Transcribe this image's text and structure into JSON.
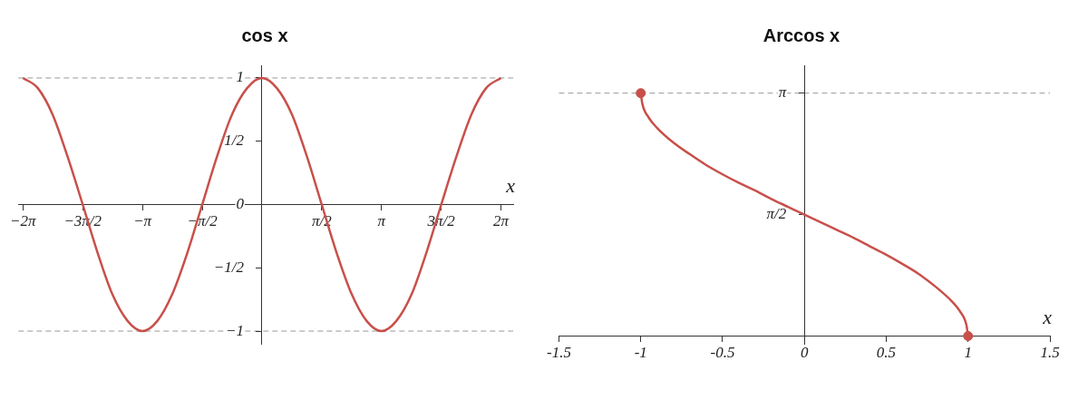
{
  "chart_data": [
    {
      "type": "line",
      "title": "cos x",
      "xlabel": "x",
      "xlim": [
        -6.4,
        6.6
      ],
      "ylim": [
        -1.1,
        1.1
      ],
      "xticks": [
        {
          "value": -6.28,
          "label": "−2π"
        },
        {
          "value": -4.71,
          "label": "−3π/2"
        },
        {
          "value": -3.14,
          "label": "−π"
        },
        {
          "value": -1.57,
          "label": "−π/2"
        },
        {
          "value": 1.57,
          "label": "π/2"
        },
        {
          "value": 3.14,
          "label": "π"
        },
        {
          "value": 4.71,
          "label": "3π/2"
        },
        {
          "value": 6.28,
          "label": "2π"
        }
      ],
      "yticks": [
        {
          "value": -1,
          "label": "−1"
        },
        {
          "value": -0.5,
          "label": "−1/2"
        },
        0,
        {
          "value": 0.5,
          "label": "1/2"
        },
        1
      ],
      "grid": false,
      "legend": false,
      "marker": "none",
      "line_style": "solid",
      "x": [
        -6.28,
        -5.89,
        -5.5,
        -5.11,
        -4.71,
        -4.32,
        -3.93,
        -3.53,
        -3.14,
        -2.75,
        -2.36,
        -1.96,
        -1.57,
        -1.18,
        -0.79,
        -0.39,
        0,
        0.39,
        0.79,
        1.18,
        1.57,
        1.96,
        2.36,
        2.75,
        3.14,
        3.53,
        3.93,
        4.32,
        4.71,
        5.11,
        5.5,
        5.89,
        6.28
      ],
      "series": [
        {
          "color": "#c8504a",
          "values": [
            1,
            0.92,
            0.71,
            0.38,
            0,
            -0.38,
            -0.71,
            -0.92,
            -1,
            -0.92,
            -0.71,
            -0.38,
            0,
            0.38,
            0.71,
            0.92,
            1,
            0.92,
            0.71,
            0.38,
            0,
            -0.38,
            -0.71,
            -0.92,
            -1,
            -0.92,
            -0.71,
            -0.38,
            0,
            0.38,
            0.71,
            0.92,
            1
          ]
        }
      ],
      "ref_lines": [
        {
          "axis": "y",
          "value": 1,
          "color": "#999999",
          "line_style": "dashed"
        },
        {
          "axis": "y",
          "value": -1,
          "color": "#999999",
          "line_style": "dashed"
        }
      ]
    },
    {
      "type": "line",
      "title": "Arccos x",
      "xlabel": "x",
      "xlim": [
        -1.5,
        1.5
      ],
      "ylim": [
        -0.1,
        3.5
      ],
      "xticks": [
        -1.5,
        -1,
        -0.5,
        0,
        0.5,
        1,
        1.5
      ],
      "yticks": [
        {
          "value": 1.57,
          "label": "π/2"
        },
        {
          "value": 3.14,
          "label": "π"
        }
      ],
      "grid": false,
      "legend": false,
      "marker": "none",
      "line_style": "solid",
      "x": [
        -1,
        -0.99,
        -0.95,
        -0.9,
        -0.8,
        -0.7,
        -0.6,
        -0.5,
        -0.4,
        -0.3,
        -0.2,
        -0.1,
        0,
        0.1,
        0.2,
        0.3,
        0.4,
        0.5,
        0.6,
        0.7,
        0.8,
        0.9,
        0.95,
        0.99,
        1
      ],
      "series": [
        {
          "color": "#c8504a",
          "values": [
            3.14,
            3,
            2.82,
            2.69,
            2.5,
            2.35,
            2.21,
            2.09,
            1.98,
            1.88,
            1.77,
            1.67,
            1.57,
            1.47,
            1.37,
            1.27,
            1.16,
            1.05,
            0.93,
            0.8,
            0.64,
            0.45,
            0.32,
            0.14,
            0
          ]
        },
        {
          "type": "scatter",
          "color": "#c8504a",
          "marker": "circle",
          "x": [
            -1,
            1
          ],
          "values": [
            3.14,
            0
          ]
        }
      ],
      "ref_lines": [
        {
          "axis": "y",
          "value": 3.14,
          "color": "#999999",
          "line_style": "dashed"
        }
      ]
    }
  ]
}
